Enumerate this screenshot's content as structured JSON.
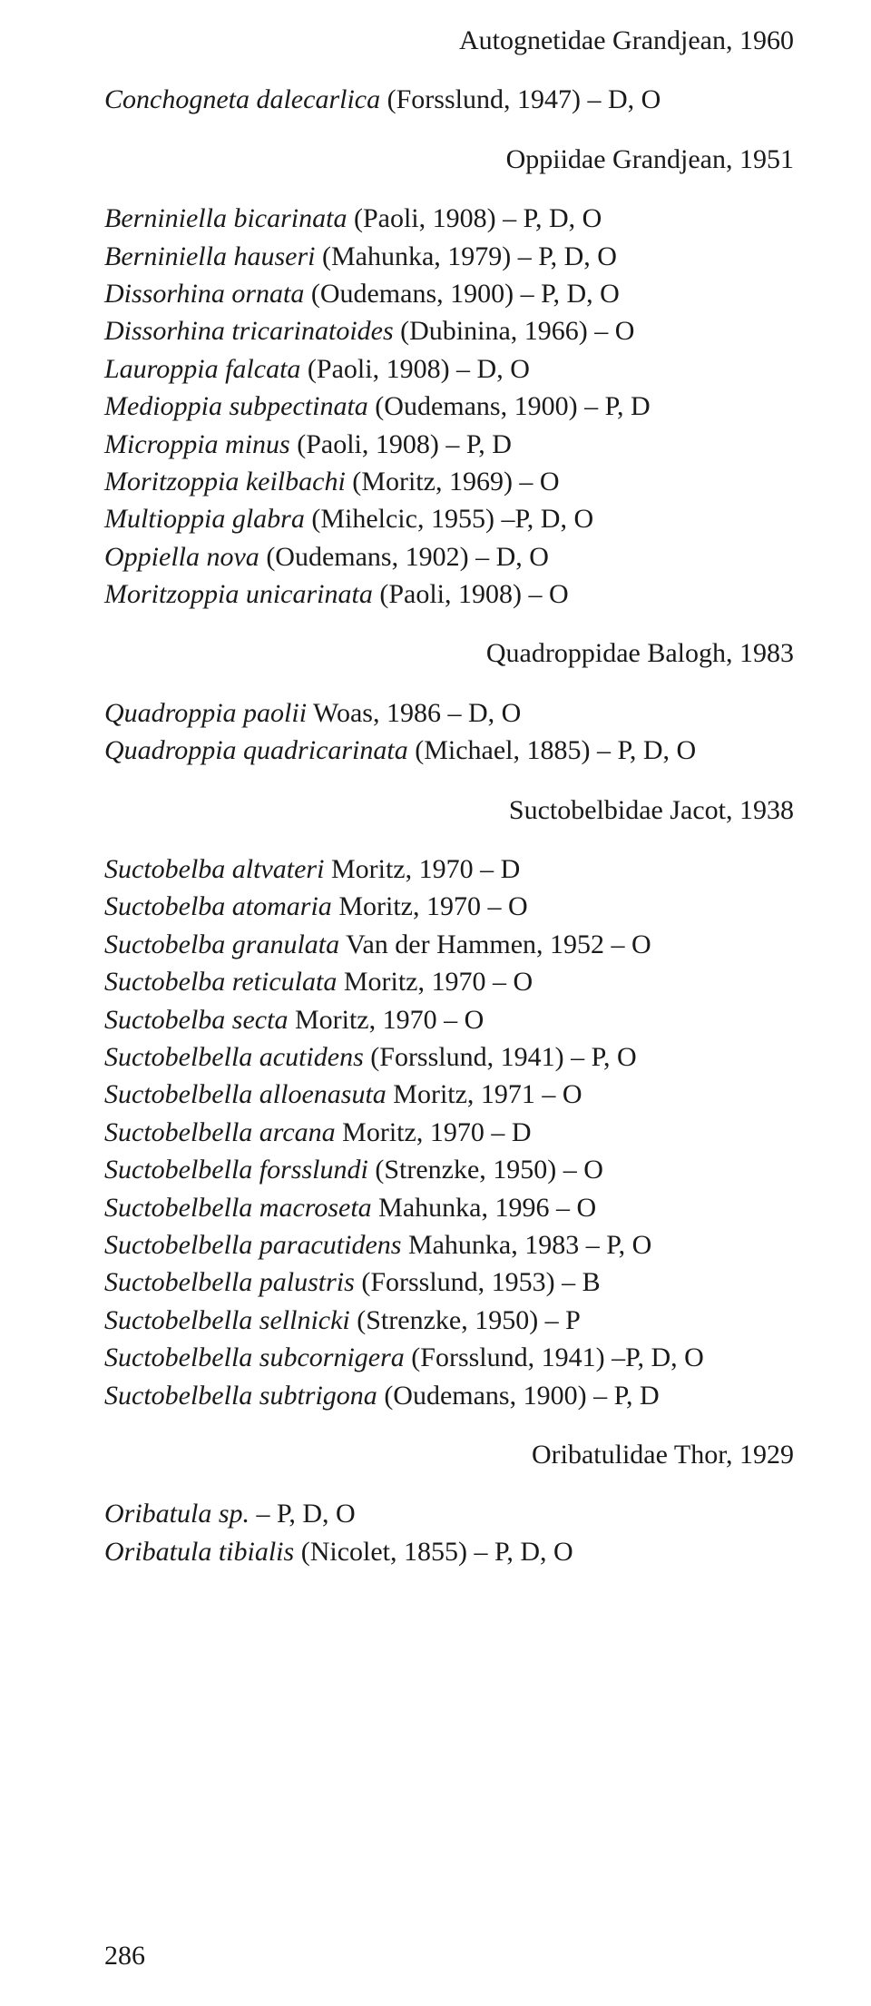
{
  "headings": {
    "autognetidae": "Autognetidae Grandjean, 1960",
    "oppiidae": "Oppiidae Grandjean, 1951",
    "quadroppidae": "Quadroppidae Balogh, 1983",
    "suctobelbidae": "Suctobelbidae Jacot, 1938",
    "oribatulidae": "Oribatulidae Thor, 1929"
  },
  "groups": {
    "autognetidae": [
      {
        "species": "Conchogneta dalecarlica",
        "rest": " (Forsslund, 1947) – D, O"
      }
    ],
    "oppiidae": [
      {
        "species": "Berniniella bicarinata",
        "rest": " (Paoli, 1908) – P, D, O"
      },
      {
        "species": "Berniniella hauseri",
        "rest": " (Mahunka, 1979) – P, D, O"
      },
      {
        "species": "Dissorhina ornata",
        "rest": " (Oudemans, 1900) – P, D, O"
      },
      {
        "species": "Dissorhina tricarinatoides",
        "rest": " (Dubinina, 1966) – O"
      },
      {
        "species": "Lauroppia falcata",
        "rest": " (Paoli, 1908) – D, O"
      },
      {
        "species": "Medioppia subpectinata",
        "rest": " (Oudemans, 1900) – P, D"
      },
      {
        "species": "Microppia minus",
        "rest": " (Paoli, 1908) – P, D"
      },
      {
        "species": "Moritzoppia keilbachi",
        "rest": " (Moritz, 1969) – O"
      },
      {
        "species": "Multioppia glabra",
        "rest": " (Mihelcic, 1955) –P, D, O"
      },
      {
        "species": "Oppiella nova",
        "rest": " (Oudemans, 1902) – D, O"
      },
      {
        "species": "Moritzoppia unicarinata",
        "rest": " (Paoli, 1908) – O"
      }
    ],
    "quadroppidae": [
      {
        "species": "Quadroppia paolii",
        "rest": " Woas, 1986 – D, O"
      },
      {
        "species": "Quadroppia quadricarinata",
        "rest": " (Michael, 1885) – P, D, O"
      }
    ],
    "suctobelbidae": [
      {
        "species": "Suctobelba altvateri",
        "rest": " Moritz, 1970 – D"
      },
      {
        "species": "Suctobelba atomaria",
        "rest": " Moritz, 1970 – O"
      },
      {
        "species": "Suctobelba granulata",
        "rest": " Van der Hammen, 1952 – O"
      },
      {
        "species": "Suctobelba reticulata",
        "rest": " Moritz, 1970 – O"
      },
      {
        "species": "Suctobelba secta",
        "rest": " Moritz, 1970 – O"
      },
      {
        "species": "Suctobelbella acutidens",
        "rest": " (Forsslund, 1941) – P, O"
      },
      {
        "species": "Suctobelbella alloenasuta",
        "rest": " Moritz, 1971 – O"
      },
      {
        "species": "Suctobelbella arcana",
        "rest": " Moritz, 1970 – D"
      },
      {
        "species": "Suctobelbella forsslundi",
        "rest": " (Strenzke, 1950) – O"
      },
      {
        "species": "Suctobelbella macroseta",
        "rest": " Mahunka, 1996 – O"
      },
      {
        "species": "Suctobelbella paracutidens",
        "rest": " Mahunka, 1983 – P, O"
      },
      {
        "species": "Suctobelbella palustris",
        "rest": " (Forsslund, 1953) – B"
      },
      {
        "species": "Suctobelbella sellnicki",
        "rest": " (Strenzke, 1950) – P"
      },
      {
        "species": "Suctobelbella subcornigera",
        "rest": " (Forsslund, 1941) –P, D, O"
      },
      {
        "species": "Suctobelbella subtrigona",
        "rest": " (Oudemans, 1900) – P, D"
      }
    ],
    "oribatulidae": [
      {
        "species": "Oribatula sp.",
        "rest": " – P, D, O"
      },
      {
        "species": "Oribatula tibialis",
        "rest": " (Nicolet, 1855) – P, D, O"
      }
    ]
  },
  "page_number": "286"
}
